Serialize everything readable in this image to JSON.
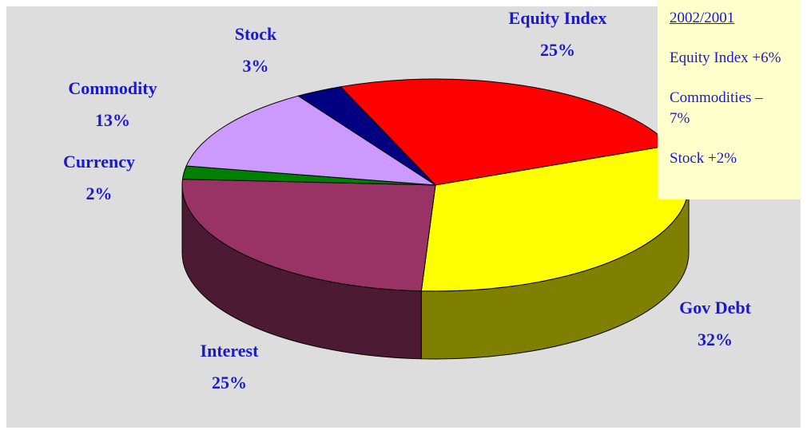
{
  "chart_data": {
    "type": "pie",
    "categories": [
      "Equity Index",
      "Gov Debt",
      "Interest",
      "Currency",
      "Commodity",
      "Stock"
    ],
    "values": [
      25,
      32,
      25,
      2,
      13,
      3
    ],
    "value_labels": [
      "25%",
      "32%",
      "25%",
      "2%",
      "13%",
      "3%"
    ],
    "colors": [
      "#ff0000",
      "#ffff00",
      "#993366",
      "#008000",
      "#cc99ff",
      "#000080"
    ],
    "annotation": {
      "title": "2002/2001",
      "notes": [
        "Equity Index +6%",
        "Commodities –7%",
        "Stock +2%"
      ]
    }
  }
}
